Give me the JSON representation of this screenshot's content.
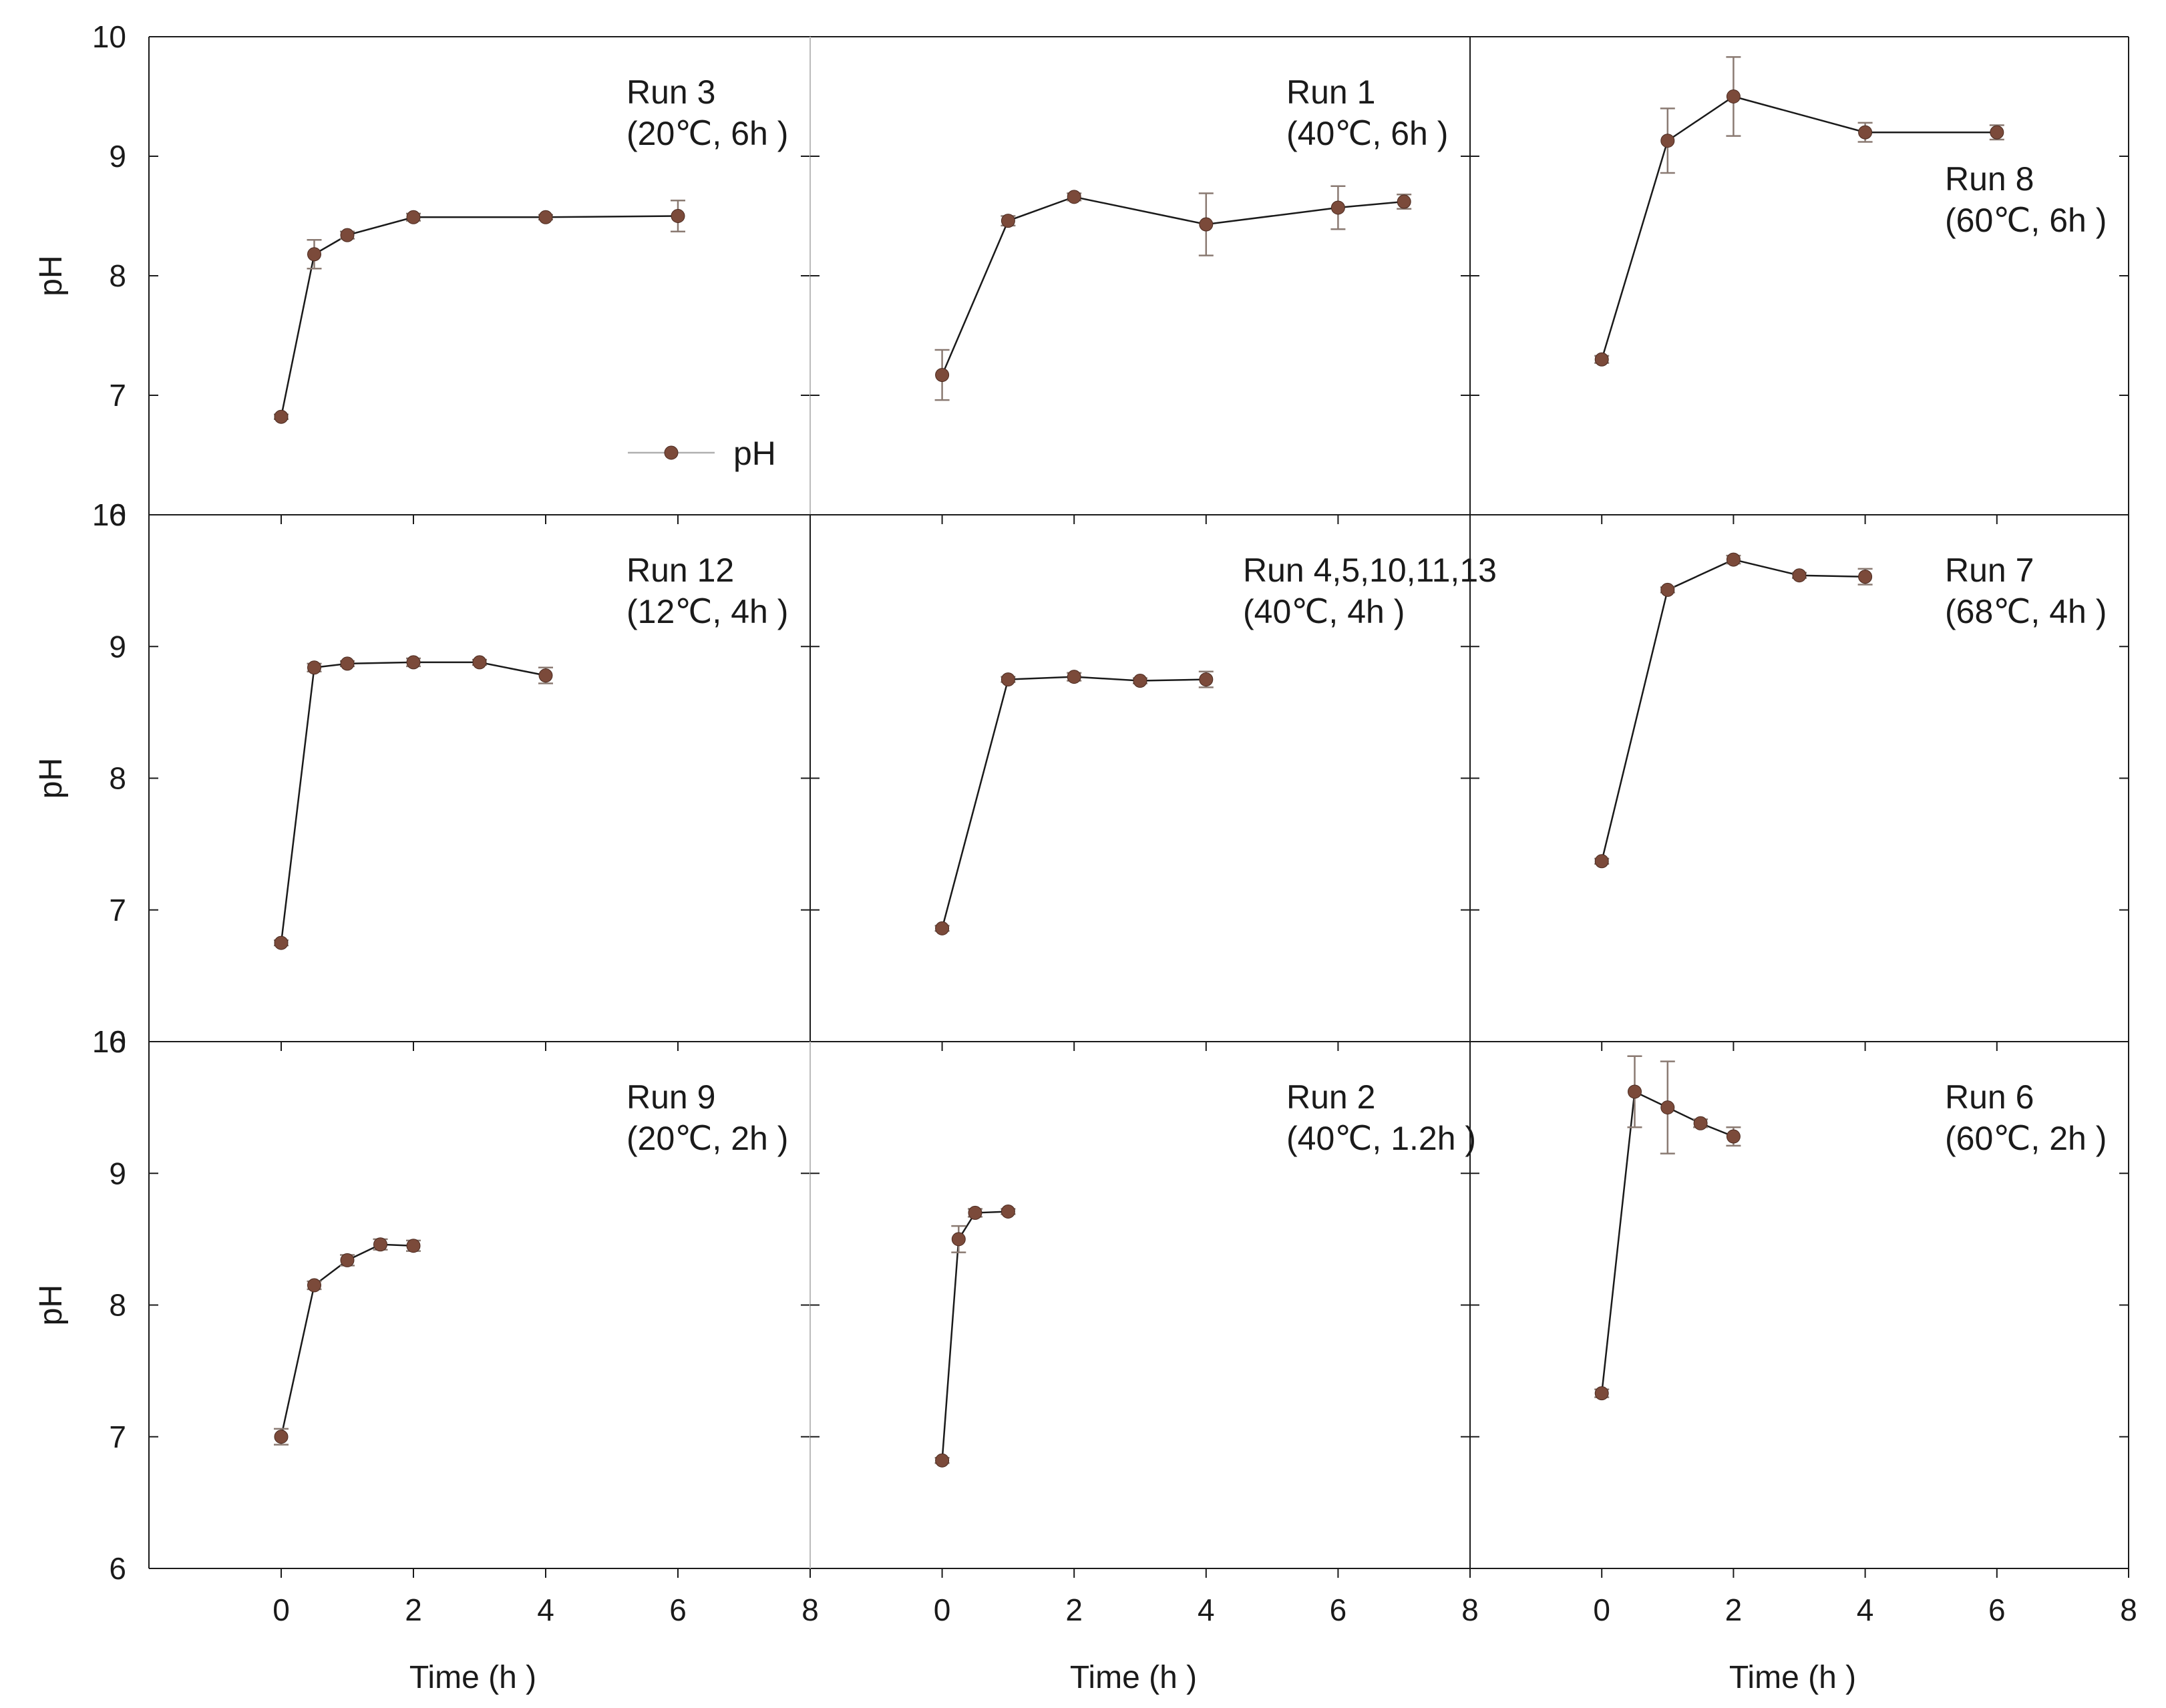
{
  "chart_data": {
    "type": "line",
    "title": "",
    "layout": "3x3 grid of panels with shared axes",
    "xlabel": "Time (h )",
    "ylabel": "pH",
    "xlim": [
      -2,
      8
    ],
    "ylim": [
      6,
      10
    ],
    "x_ticks": [
      0,
      2,
      4,
      6,
      8
    ],
    "y_ticks": [
      6,
      7,
      8,
      9,
      10
    ],
    "x_tick_labels": [
      "0",
      "2",
      "4",
      "6",
      "8"
    ],
    "y_tick_labels": [
      "6",
      "7",
      "8",
      "9",
      "10"
    ],
    "grid": false,
    "legend": {
      "label": "pH",
      "location": "inside first panel, lower-right"
    },
    "colors": {
      "marker": "#7b4a3a",
      "line": "#1a1a1a",
      "errorbar": "#8a7a72",
      "frame": "#1a1a1a",
      "legend_line": "#b0b0b0",
      "divider_light": "#bbbbbb"
    },
    "panels": [
      {
        "name": "Run 3",
        "condition": "(20℃, 6h )",
        "series": [
          {
            "name": "pH",
            "x": [
              0,
              0.5,
              1,
              2,
              4,
              6
            ],
            "y": [
              6.82,
              8.18,
              8.34,
              8.49,
              8.49,
              8.5
            ],
            "err": [
              0.02,
              0.12,
              0.03,
              0.03,
              0.02,
              0.13
            ]
          }
        ]
      },
      {
        "name": "Run 1",
        "condition": "(40℃, 6h )",
        "series": [
          {
            "name": "pH",
            "x": [
              0,
              1,
              2,
              4,
              6,
              7
            ],
            "y": [
              7.17,
              8.46,
              8.66,
              8.43,
              8.57,
              8.62
            ],
            "err": [
              0.21,
              0.04,
              0.03,
              0.26,
              0.18,
              0.06
            ]
          }
        ]
      },
      {
        "name": "Run 8",
        "condition": "(60℃, 6h )",
        "series": [
          {
            "name": "pH",
            "x": [
              0,
              1,
              2,
              4,
              6
            ],
            "y": [
              7.3,
              9.13,
              9.5,
              9.2,
              9.2
            ],
            "err": [
              0.03,
              0.27,
              0.33,
              0.08,
              0.06
            ]
          }
        ]
      },
      {
        "name": "Run 12",
        "condition": "(12℃, 4h )",
        "series": [
          {
            "name": "pH",
            "x": [
              0,
              0.5,
              1,
              2,
              3,
              4
            ],
            "y": [
              6.75,
              8.84,
              8.87,
              8.88,
              8.88,
              8.78
            ],
            "err": [
              0.02,
              0.03,
              0.02,
              0.03,
              0.02,
              0.06
            ]
          }
        ]
      },
      {
        "name": "Run 4,5,10,11,13",
        "condition": "(40℃, 4h )",
        "series": [
          {
            "name": "pH",
            "x": [
              0,
              1,
              2,
              3,
              4
            ],
            "y": [
              6.86,
              8.75,
              8.77,
              8.74,
              8.75
            ],
            "err": [
              0.02,
              0.02,
              0.03,
              0.02,
              0.06
            ]
          }
        ]
      },
      {
        "name": "Run 7",
        "condition": "(68℃, 4h )",
        "series": [
          {
            "name": "pH",
            "x": [
              0,
              1,
              2,
              3,
              4
            ],
            "y": [
              7.37,
              9.43,
              9.66,
              9.54,
              9.53
            ],
            "err": [
              0.02,
              0.02,
              0.03,
              0.02,
              0.06
            ]
          }
        ]
      },
      {
        "name": "Run 9",
        "condition": "(20℃, 2h )",
        "series": [
          {
            "name": "pH",
            "x": [
              0,
              0.5,
              1,
              1.5,
              2
            ],
            "y": [
              7.0,
              8.15,
              8.34,
              8.46,
              8.45
            ],
            "err": [
              0.06,
              0.03,
              0.04,
              0.04,
              0.04
            ]
          }
        ]
      },
      {
        "name": "Run 2",
        "condition": "(40℃, 1.2h )",
        "series": [
          {
            "name": "pH",
            "x": [
              0,
              0.25,
              0.5,
              1
            ],
            "y": [
              6.82,
              8.5,
              8.7,
              8.71
            ],
            "err": [
              0.02,
              0.1,
              0.03,
              0.02
            ]
          }
        ]
      },
      {
        "name": "Run 6",
        "condition": "(60℃, 2h )",
        "series": [
          {
            "name": "pH",
            "x": [
              0,
              0.5,
              1,
              1.5,
              2
            ],
            "y": [
              7.33,
              9.62,
              9.5,
              9.38,
              9.28
            ],
            "err": [
              0.03,
              0.27,
              0.35,
              0.03,
              0.07
            ]
          }
        ]
      }
    ]
  }
}
